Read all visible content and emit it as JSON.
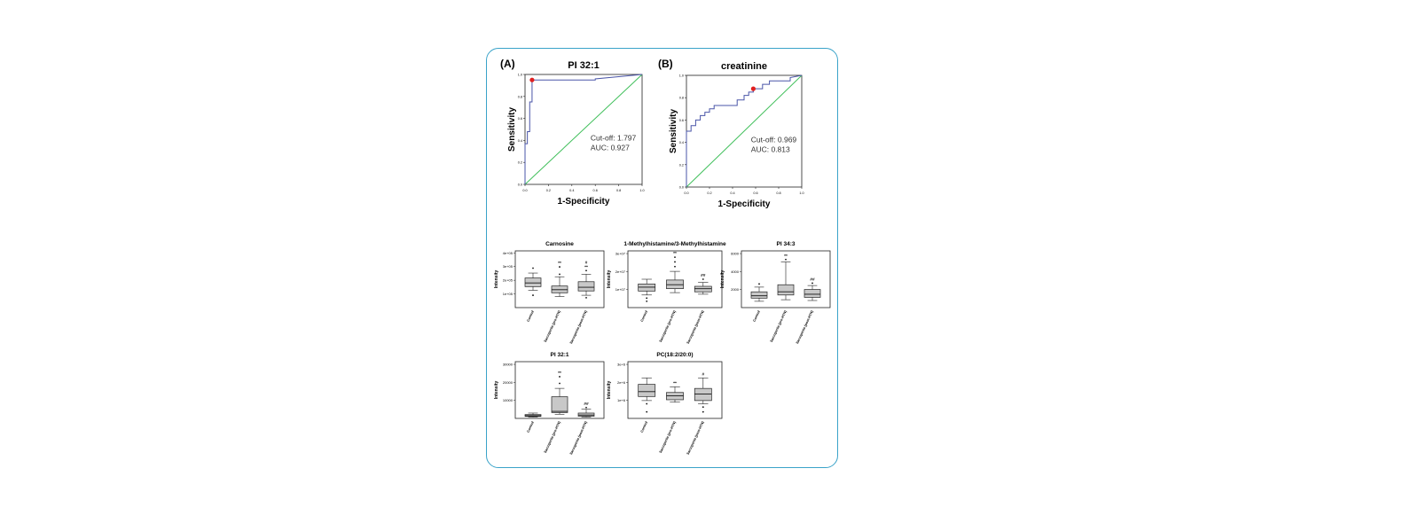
{
  "colors": {
    "frame": "#3aa3c9",
    "roc_line": "#4a55a8",
    "diagonal": "#3fbf5a",
    "cutoff_point": "#e02020",
    "box_fill": "#c8c8c8"
  },
  "chart_data": [
    {
      "type": "line",
      "panel": "(A)",
      "title": "PI 32:1",
      "xlabel": "1-Specificity",
      "ylabel": "Sensitivity",
      "xlim": [
        0,
        1
      ],
      "ylim": [
        0,
        1
      ],
      "xticks": [
        "0.0",
        "0.2",
        "0.4",
        "0.6",
        "0.8",
        "1.0"
      ],
      "yticks": [
        "0.0",
        "0.2",
        "0.4",
        "0.6",
        "0.8",
        "1.0"
      ],
      "annotation": [
        "Cut-off: 1.797",
        "AUC: 0.927"
      ],
      "cutoff_point": {
        "x": 0.06,
        "y": 0.95
      },
      "roc": {
        "x": [
          0,
          0,
          0.02,
          0.02,
          0.04,
          0.04,
          0.06,
          0.06,
          0.6,
          0.6,
          0.8,
          1.0
        ],
        "y": [
          0,
          0.37,
          0.37,
          0.48,
          0.48,
          0.75,
          0.75,
          0.95,
          0.95,
          0.96,
          0.98,
          1.0
        ]
      }
    },
    {
      "type": "line",
      "panel": "(B)",
      "title": "creatinine",
      "xlabel": "1-Specificity",
      "ylabel": "Sensitivity",
      "xlim": [
        0,
        1
      ],
      "ylim": [
        0,
        1
      ],
      "xticks": [
        "0.0",
        "0.2",
        "0.4",
        "0.6",
        "0.8",
        "1.0"
      ],
      "yticks": [
        "0.0",
        "0.2",
        "0.4",
        "0.6",
        "0.8",
        "1.0"
      ],
      "annotation": [
        "Cut-off: 0.969",
        "AUC: 0.813"
      ],
      "cutoff_point": {
        "x": 0.58,
        "y": 0.88
      },
      "roc": {
        "x": [
          0,
          0,
          0.04,
          0.04,
          0.08,
          0.08,
          0.12,
          0.12,
          0.16,
          0.16,
          0.2,
          0.2,
          0.24,
          0.24,
          0.44,
          0.44,
          0.5,
          0.5,
          0.54,
          0.54,
          0.58,
          0.58,
          0.66,
          0.66,
          0.72,
          0.72,
          0.9,
          0.9,
          1.0
        ],
        "y": [
          0,
          0.5,
          0.5,
          0.55,
          0.55,
          0.6,
          0.6,
          0.64,
          0.64,
          0.67,
          0.67,
          0.7,
          0.7,
          0.73,
          0.73,
          0.78,
          0.78,
          0.82,
          0.82,
          0.85,
          0.85,
          0.88,
          0.88,
          0.92,
          0.92,
          0.95,
          0.95,
          0.98,
          1.0
        ]
      }
    },
    {
      "type": "box",
      "title": "Carnosine",
      "ylabel": "Intensity",
      "categories": [
        "Control",
        "Sarcopenia (pre-HTN)",
        "Sarcopenia (post-HTN)"
      ],
      "yticks": [
        "1e+05",
        "2e+05",
        "3e+05",
        "4e+05"
      ],
      "ylim": [
        0,
        4.6
      ],
      "boxes": [
        {
          "whisker_low": 1.4,
          "q1": 1.7,
          "median": 2.0,
          "q3": 2.4,
          "whisker_high": 2.8,
          "outliers": [
            1.0,
            3.2
          ],
          "mark": ""
        },
        {
          "whisker_low": 0.9,
          "q1": 1.2,
          "median": 1.45,
          "q3": 1.75,
          "whisker_high": 2.5,
          "outliers": [
            2.7,
            3.3
          ],
          "mark": "**"
        },
        {
          "whisker_low": 1.0,
          "q1": 1.35,
          "median": 1.65,
          "q3": 2.1,
          "whisker_high": 2.7,
          "outliers": [
            0.8,
            3.0
          ],
          "mark": "# **"
        }
      ]
    },
    {
      "type": "box",
      "title": "1-Methylhistamine/3-Methylhistamine",
      "ylabel": "Intensity",
      "categories": [
        "Control",
        "Sarcopenia (pre-HTN)",
        "Sarcopenia (post-HTN)"
      ],
      "yticks": [
        "1e+07",
        "2e+07",
        "3e+07"
      ],
      "ylim": [
        0,
        3.6
      ],
      "boxes": [
        {
          "whisker_low": 0.8,
          "q1": 1.05,
          "median": 1.3,
          "q3": 1.5,
          "whisker_high": 1.8,
          "outliers": [
            0.4,
            0.6
          ],
          "mark": ""
        },
        {
          "whisker_low": 0.95,
          "q1": 1.2,
          "median": 1.45,
          "q3": 1.75,
          "whisker_high": 2.3,
          "outliers": [
            2.6,
            2.9,
            3.2
          ],
          "mark": "**"
        },
        {
          "whisker_low": 0.85,
          "q1": 1.0,
          "median": 1.2,
          "q3": 1.35,
          "whisker_high": 1.6,
          "outliers": [
            1.8
          ],
          "mark": "##"
        }
      ]
    },
    {
      "type": "box",
      "title": "PI 34:3",
      "ylabel": "Intensity",
      "categories": [
        "Control",
        "Sarcopenia (pre-HTN)",
        "Sarcopenia (post-HTN)"
      ],
      "yticks": [
        "2000",
        "4000",
        "6000"
      ],
      "ylim": [
        0,
        7200
      ],
      "boxes": [
        {
          "whisker_low": 800,
          "q1": 1200,
          "median": 1500,
          "q3": 2000,
          "whisker_high": 2600,
          "outliers": [
            3000
          ],
          "mark": ""
        },
        {
          "whisker_low": 1000,
          "q1": 1600,
          "median": 2000,
          "q3": 2900,
          "whisker_high": 5800,
          "outliers": [
            6100
          ],
          "mark": "**"
        },
        {
          "whisker_low": 900,
          "q1": 1300,
          "median": 1700,
          "q3": 2300,
          "whisker_high": 2800,
          "outliers": [
            3100
          ],
          "mark": "##"
        }
      ]
    },
    {
      "type": "box",
      "title": "PI 32:1",
      "ylabel": "Intensity",
      "categories": [
        "Control",
        "Sarcopenia (pre-HTN)",
        "Sarcopenia (post-HTN)"
      ],
      "yticks": [
        "10000",
        "20000",
        "30000"
      ],
      "ylim": [
        0,
        34000
      ],
      "boxes": [
        {
          "whisker_low": 800,
          "q1": 1200,
          "median": 1600,
          "q3": 2300,
          "whisker_high": 3200,
          "outliers": [],
          "mark": ""
        },
        {
          "whisker_low": 2500,
          "q1": 3500,
          "median": 4200,
          "q3": 13000,
          "whisker_high": 18000,
          "outliers": [
            21000,
            25000
          ],
          "mark": "**"
        },
        {
          "whisker_low": 800,
          "q1": 1300,
          "median": 2000,
          "q3": 3200,
          "whisker_high": 5500,
          "outliers": [
            6500
          ],
          "mark": "##"
        }
      ]
    },
    {
      "type": "box",
      "title": "PC(18:2/20:0)",
      "ylabel": "Intensity",
      "categories": [
        "Control",
        "Sarcopenia (pre-HTN)",
        "Sarcopenia (post-HTN)"
      ],
      "yticks": [
        "1e+6",
        "2e+6",
        "3e+6"
      ],
      "ylim": [
        0,
        3.5
      ],
      "boxes": [
        {
          "whisker_low": 1.1,
          "q1": 1.35,
          "median": 1.65,
          "q3": 2.1,
          "whisker_high": 2.5,
          "outliers": [
            0.4,
            0.9
          ],
          "mark": ""
        },
        {
          "whisker_low": 1.0,
          "q1": 1.15,
          "median": 1.4,
          "q3": 1.6,
          "whisker_high": 1.95,
          "outliers": [],
          "mark": "**"
        },
        {
          "whisker_low": 0.9,
          "q1": 1.1,
          "median": 1.5,
          "q3": 1.85,
          "whisker_high": 2.5,
          "outliers": [
            0.4,
            0.7
          ],
          "mark": "#"
        }
      ]
    }
  ]
}
